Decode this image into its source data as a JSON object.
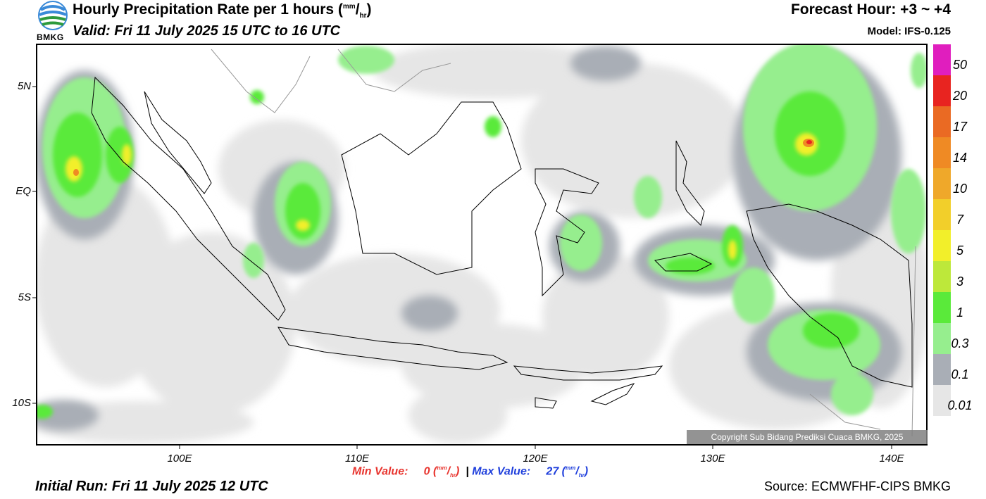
{
  "header": {
    "logo_text": "BMKG",
    "title_main": "Hourly Precipitation Rate per 1 hours (",
    "title_unit_top": "mm",
    "title_unit_sep": "/",
    "title_unit_bottom": "hr",
    "title_close": ")",
    "valid": "Valid: Fri 11 July 2025 15 UTC to 16 UTC",
    "forecast_hour": "Forecast Hour: +3 ~ +4",
    "model": "Model: IFS-0.125"
  },
  "map": {
    "y_ticks": [
      "5N",
      "EQ",
      "5S",
      "10S"
    ],
    "x_ticks": [
      "100E",
      "110E",
      "120E",
      "130E",
      "140E"
    ],
    "copyright": "Copyright Sub Bidang Prediksi Cuaca BMKG, 2025",
    "region": "Indonesia"
  },
  "legend": {
    "labels": [
      "50",
      "20",
      "17",
      "14",
      "10",
      "7",
      "5",
      "3",
      "1",
      "0.3",
      "0.1",
      "0.01"
    ],
    "colors": [
      "#e01ebe",
      "#e82420",
      "#ea6a23",
      "#ef8a24",
      "#efa82a",
      "#f2cf2a",
      "#f2ef2a",
      "#bde83a",
      "#5aea3a",
      "#96ee8e",
      "#a9aeb6",
      "#e6e6e6"
    ]
  },
  "footer": {
    "min_label": "Min Value:",
    "min_value": "0",
    "max_label": "Max Value:",
    "max_value": "27",
    "separator": "|",
    "unit_top": "mm",
    "unit_bottom": "hr",
    "initial_run": "Initial Run: Fri 11 July 2025 12 UTC",
    "source": "Source: ECMWFHF-CIPS BMKG"
  }
}
